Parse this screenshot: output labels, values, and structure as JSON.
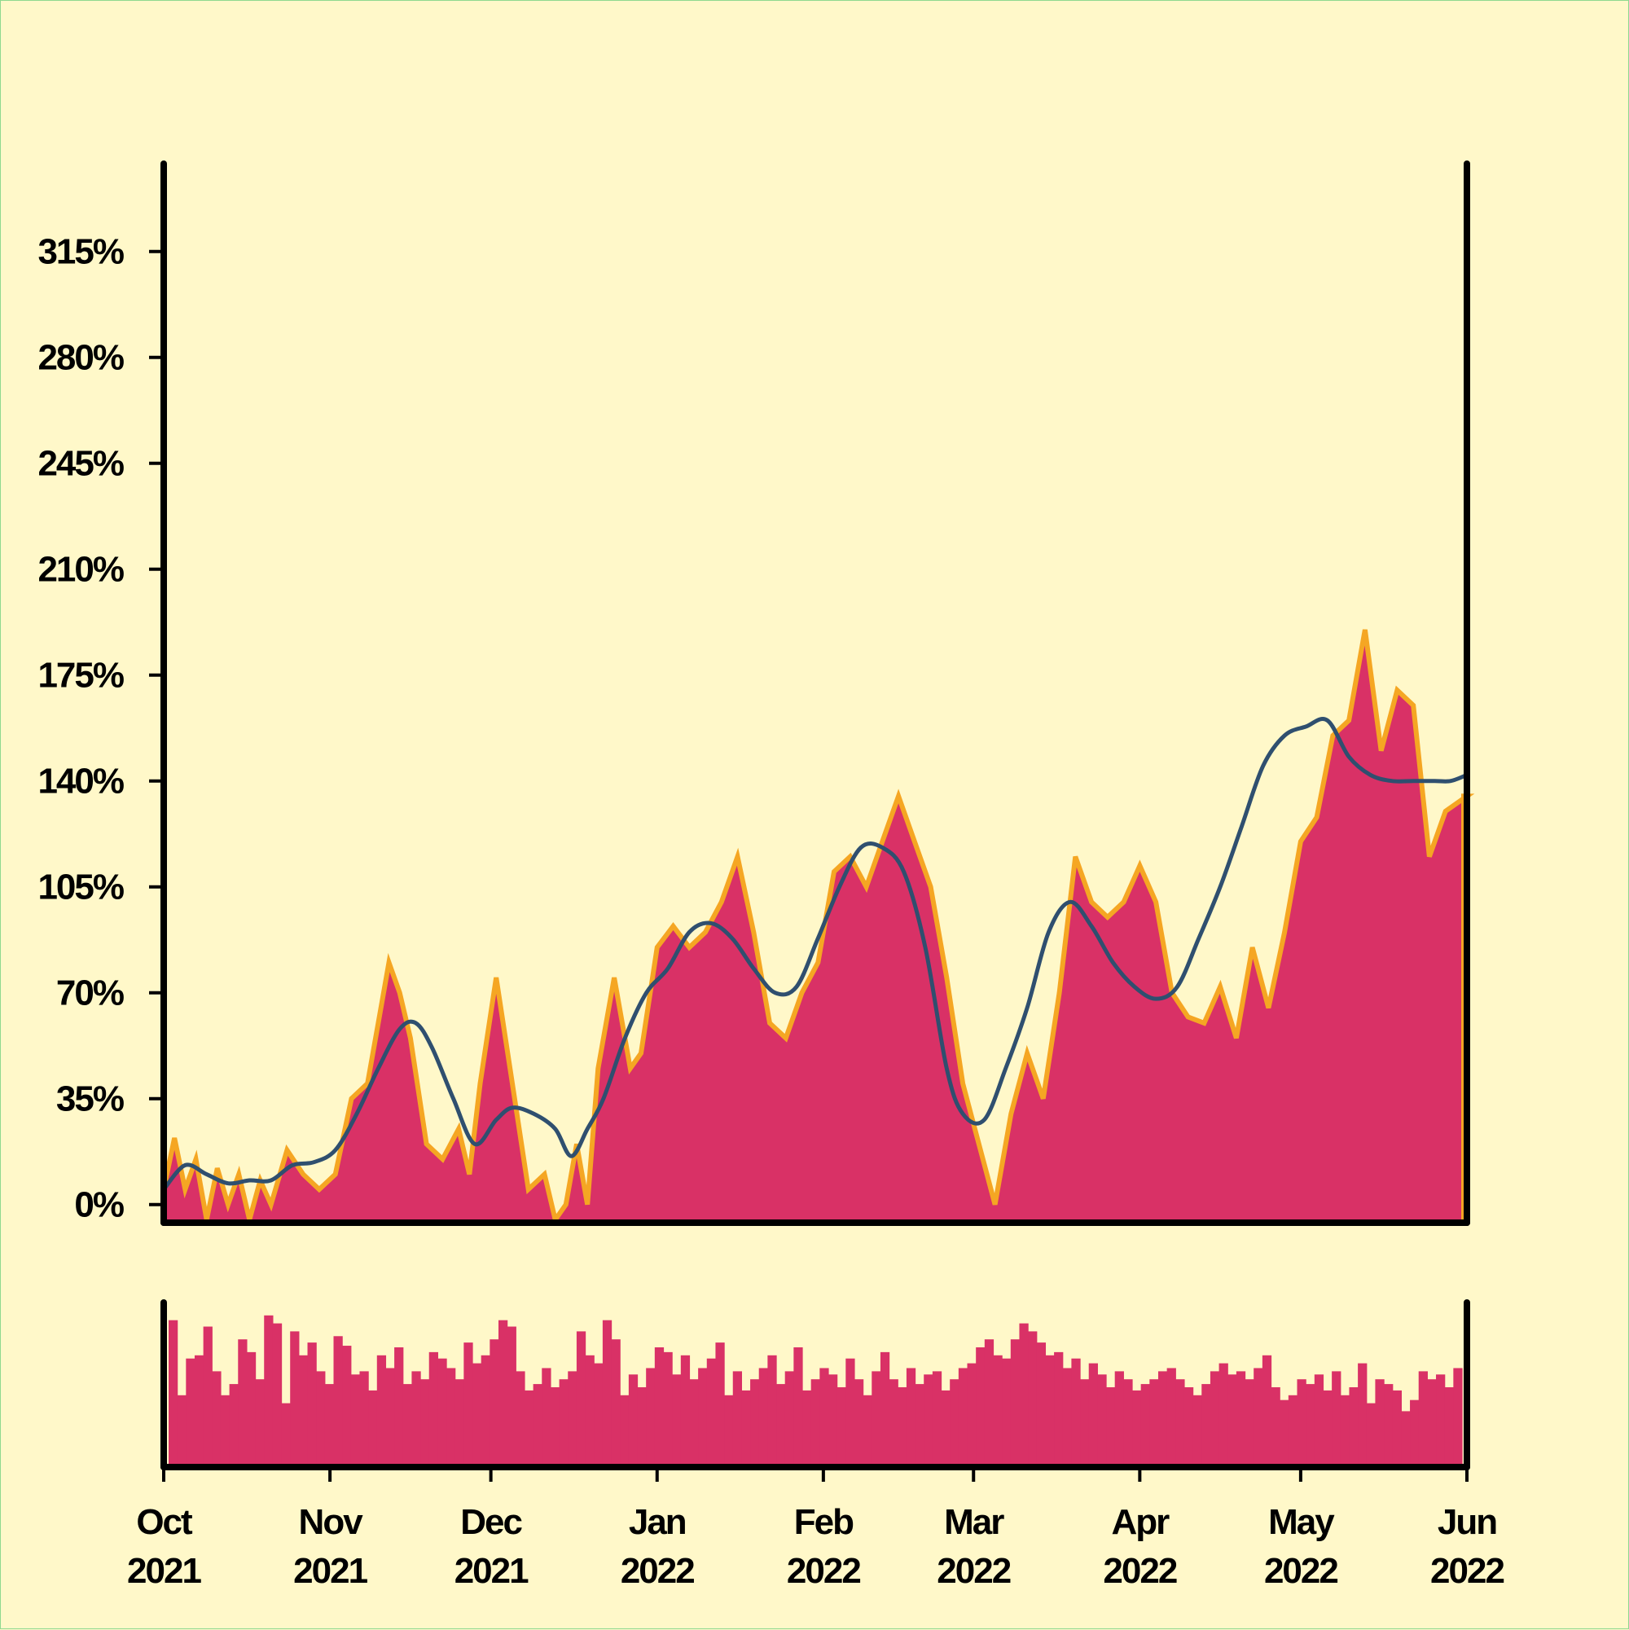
{
  "chart_data": [
    {
      "type": "area",
      "role": "main-panel",
      "title": "",
      "xlabel": "",
      "ylabel": "",
      "x_start": "2021-10-01",
      "x_end": "2022-06-01",
      "ylim": [
        -6,
        344
      ],
      "y_ticks": [
        0,
        35,
        70,
        105,
        140,
        175,
        210,
        245,
        280,
        315
      ],
      "y_tick_labels": [
        "0%",
        "35%",
        "70%",
        "105%",
        "140%",
        "175%",
        "210%",
        "245%",
        "280%",
        "315%"
      ],
      "x_ticks": [
        "2021-10-01",
        "2021-11-01",
        "2021-12-01",
        "2022-01-01",
        "2022-02-01",
        "2022-03-01",
        "2022-04-01",
        "2022-05-01",
        "2022-06-01"
      ],
      "x_tick_labels": [
        [
          "Oct",
          "2021"
        ],
        [
          "Nov",
          "2021"
        ],
        [
          "Dec",
          "2021"
        ],
        [
          "Jan",
          "2022"
        ],
        [
          "Feb",
          "2022"
        ],
        [
          "Mar",
          "2022"
        ],
        [
          "Apr",
          "2022"
        ],
        [
          "May",
          "2022"
        ],
        [
          "Jun",
          "2022"
        ]
      ],
      "grid": false,
      "legend": "none",
      "colors": {
        "area": "#d93166",
        "area_outline": "#f5a623",
        "smooth_line": "#2f4f6f"
      },
      "series": [
        {
          "kind": "daily-area",
          "x": [
            "2021-10-01",
            "2021-10-03",
            "2021-10-05",
            "2021-10-07",
            "2021-10-09",
            "2021-10-11",
            "2021-10-13",
            "2021-10-15",
            "2021-10-17",
            "2021-10-19",
            "2021-10-21",
            "2021-10-24",
            "2021-10-27",
            "2021-10-30",
            "2021-11-02",
            "2021-11-05",
            "2021-11-08",
            "2021-11-10",
            "2021-11-12",
            "2021-11-14",
            "2021-11-16",
            "2021-11-19",
            "2021-11-22",
            "2021-11-25",
            "2021-11-27",
            "2021-11-29",
            "2021-12-02",
            "2021-12-05",
            "2021-12-08",
            "2021-12-11",
            "2021-12-13",
            "2021-12-15",
            "2021-12-17",
            "2021-12-19",
            "2021-12-21",
            "2021-12-24",
            "2021-12-27",
            "2021-12-29",
            "2022-01-01",
            "2022-01-04",
            "2022-01-07",
            "2022-01-10",
            "2022-01-13",
            "2022-01-16",
            "2022-01-19",
            "2022-01-22",
            "2022-01-25",
            "2022-01-28",
            "2022-01-31",
            "2022-02-03",
            "2022-02-06",
            "2022-02-09",
            "2022-02-12",
            "2022-02-15",
            "2022-02-18",
            "2022-02-21",
            "2022-02-24",
            "2022-02-27",
            "2022-03-02",
            "2022-03-05",
            "2022-03-08",
            "2022-03-11",
            "2022-03-14",
            "2022-03-17",
            "2022-03-20",
            "2022-03-23",
            "2022-03-26",
            "2022-03-29",
            "2022-04-01",
            "2022-04-04",
            "2022-04-07",
            "2022-04-10",
            "2022-04-13",
            "2022-04-16",
            "2022-04-19",
            "2022-04-22",
            "2022-04-25",
            "2022-04-28",
            "2022-05-01",
            "2022-05-04",
            "2022-05-07",
            "2022-05-10",
            "2022-05-13",
            "2022-05-16",
            "2022-05-19",
            "2022-05-22",
            "2022-05-25",
            "2022-05-28",
            "2022-06-01"
          ],
          "y": [
            5,
            22,
            5,
            15,
            -5,
            12,
            0,
            10,
            -5,
            8,
            0,
            18,
            10,
            5,
            10,
            35,
            40,
            60,
            80,
            70,
            55,
            20,
            15,
            25,
            10,
            40,
            75,
            40,
            5,
            10,
            -5,
            0,
            20,
            0,
            45,
            75,
            45,
            50,
            85,
            92,
            85,
            90,
            100,
            115,
            90,
            60,
            55,
            70,
            80,
            110,
            115,
            105,
            120,
            135,
            120,
            105,
            75,
            40,
            20,
            0,
            30,
            50,
            35,
            70,
            115,
            100,
            95,
            100,
            112,
            100,
            70,
            62,
            60,
            72,
            55,
            85,
            65,
            90,
            120,
            128,
            155,
            160,
            190,
            150,
            170,
            165,
            115,
            130,
            135
          ]
        },
        {
          "kind": "smoothed-line",
          "x": [
            "2021-10-01",
            "2021-10-05",
            "2021-10-09",
            "2021-10-13",
            "2021-10-17",
            "2021-10-21",
            "2021-10-25",
            "2021-10-29",
            "2021-11-02",
            "2021-11-06",
            "2021-11-10",
            "2021-11-14",
            "2021-11-17",
            "2021-11-20",
            "2021-11-24",
            "2021-11-28",
            "2021-12-02",
            "2021-12-05",
            "2021-12-09",
            "2021-12-13",
            "2021-12-16",
            "2021-12-19",
            "2021-12-22",
            "2021-12-26",
            "2021-12-30",
            "2022-01-03",
            "2022-01-07",
            "2022-01-11",
            "2022-01-15",
            "2022-01-19",
            "2022-01-23",
            "2022-01-27",
            "2022-01-31",
            "2022-02-04",
            "2022-02-08",
            "2022-02-12",
            "2022-02-16",
            "2022-02-20",
            "2022-02-24",
            "2022-02-27",
            "2022-03-03",
            "2022-03-07",
            "2022-03-11",
            "2022-03-15",
            "2022-03-19",
            "2022-03-23",
            "2022-03-27",
            "2022-03-31",
            "2022-04-04",
            "2022-04-08",
            "2022-04-12",
            "2022-04-16",
            "2022-04-20",
            "2022-04-24",
            "2022-04-28",
            "2022-05-02",
            "2022-05-06",
            "2022-05-10",
            "2022-05-14",
            "2022-05-18",
            "2022-05-22",
            "2022-05-26",
            "2022-05-29",
            "2022-06-01"
          ],
          "y": [
            5,
            13,
            10,
            7,
            8,
            8,
            13,
            14,
            18,
            30,
            45,
            58,
            60,
            52,
            35,
            20,
            28,
            32,
            30,
            25,
            16,
            25,
            35,
            55,
            70,
            78,
            90,
            93,
            88,
            78,
            70,
            72,
            88,
            105,
            118,
            118,
            110,
            85,
            45,
            30,
            28,
            45,
            65,
            90,
            100,
            92,
            80,
            72,
            68,
            72,
            88,
            105,
            125,
            145,
            155,
            158,
            160,
            148,
            142,
            140,
            140,
            140,
            140,
            142
          ]
        }
      ]
    },
    {
      "type": "bar",
      "role": "lower-panel",
      "title": "",
      "xlabel": "",
      "ylabel": "",
      "y_ticks": [],
      "x_range": [
        "2021-10-01",
        "2022-06-01"
      ],
      "ylim": [
        0,
        1
      ],
      "colors": {
        "bars": "#d93166"
      },
      "note_values": "relative daily heights, 0 = panel baseline, 1 = panel top",
      "values": [
        0.92,
        0.45,
        0.68,
        0.7,
        0.88,
        0.6,
        0.45,
        0.52,
        0.8,
        0.72,
        0.55,
        0.95,
        0.9,
        0.4,
        0.85,
        0.7,
        0.78,
        0.6,
        0.52,
        0.82,
        0.76,
        0.58,
        0.6,
        0.48,
        0.7,
        0.62,
        0.75,
        0.52,
        0.6,
        0.55,
        0.72,
        0.68,
        0.62,
        0.55,
        0.78,
        0.65,
        0.7,
        0.8,
        0.92,
        0.88,
        0.6,
        0.48,
        0.52,
        0.62,
        0.5,
        0.55,
        0.6,
        0.85,
        0.7,
        0.65,
        0.92,
        0.8,
        0.45,
        0.58,
        0.5,
        0.62,
        0.75,
        0.72,
        0.58,
        0.7,
        0.55,
        0.62,
        0.68,
        0.78,
        0.45,
        0.6,
        0.48,
        0.55,
        0.62,
        0.7,
        0.52,
        0.6,
        0.75,
        0.48,
        0.55,
        0.62,
        0.58,
        0.5,
        0.68,
        0.55,
        0.45,
        0.6,
        0.72,
        0.55,
        0.5,
        0.62,
        0.52,
        0.58,
        0.6,
        0.48,
        0.55,
        0.62,
        0.65,
        0.75,
        0.8,
        0.7,
        0.68,
        0.8,
        0.9,
        0.85,
        0.78,
        0.7,
        0.72,
        0.62,
        0.68,
        0.55,
        0.65,
        0.58,
        0.5,
        0.6,
        0.55,
        0.48,
        0.52,
        0.55,
        0.6,
        0.62,
        0.55,
        0.5,
        0.45,
        0.52,
        0.6,
        0.65,
        0.58,
        0.6,
        0.55,
        0.62,
        0.7,
        0.5,
        0.42,
        0.45,
        0.55,
        0.52,
        0.58,
        0.48,
        0.6,
        0.45,
        0.5,
        0.65,
        0.4,
        0.55,
        0.52,
        0.48,
        0.35,
        0.42,
        0.6,
        0.55,
        0.58,
        0.5,
        0.62
      ]
    }
  ]
}
